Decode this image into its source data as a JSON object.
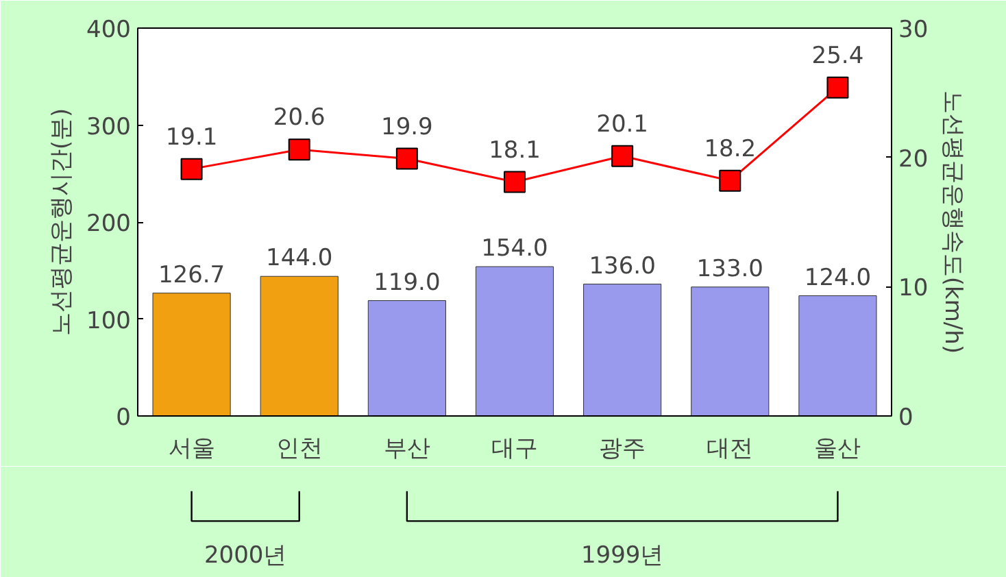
{
  "chart_data": {
    "type": "bar",
    "categories": [
      "서울",
      "인천",
      "부산",
      "대구",
      "광주",
      "대전",
      "울산"
    ],
    "ylabel": "노선평균운행시간(분)",
    "y2label": "노선평균운행속도(km/h)",
    "ylim": [
      0,
      400
    ],
    "yticks": [
      0,
      100,
      200,
      300,
      400
    ],
    "y2lim": [
      0,
      30
    ],
    "y2ticks": [
      0,
      10,
      20,
      30
    ],
    "series": [
      {
        "values": [
          126.7,
          144.0,
          119.0,
          154.0,
          136.0,
          133.0,
          124.0
        ],
        "colors": [
          "#f0a010",
          "#f0a010",
          "#9999ee",
          "#9999ee",
          "#9999ee",
          "#9999ee",
          "#9999ee"
        ],
        "value_labels": [
          "126.7",
          "144.0",
          "119.0",
          "154.0",
          "136.0",
          "133.0",
          "124.0"
        ]
      },
      {
        "type": "line",
        "axis": "y2",
        "color": "#ff0000",
        "marker": "square",
        "values": [
          19.1,
          20.6,
          19.9,
          18.1,
          20.1,
          18.2,
          25.4
        ],
        "value_labels": [
          "19.1",
          "20.6",
          "19.9",
          "18.1",
          "20.1",
          "18.2",
          "25.4"
        ]
      }
    ],
    "annotations": [
      "2000년",
      "1999년"
    ]
  }
}
